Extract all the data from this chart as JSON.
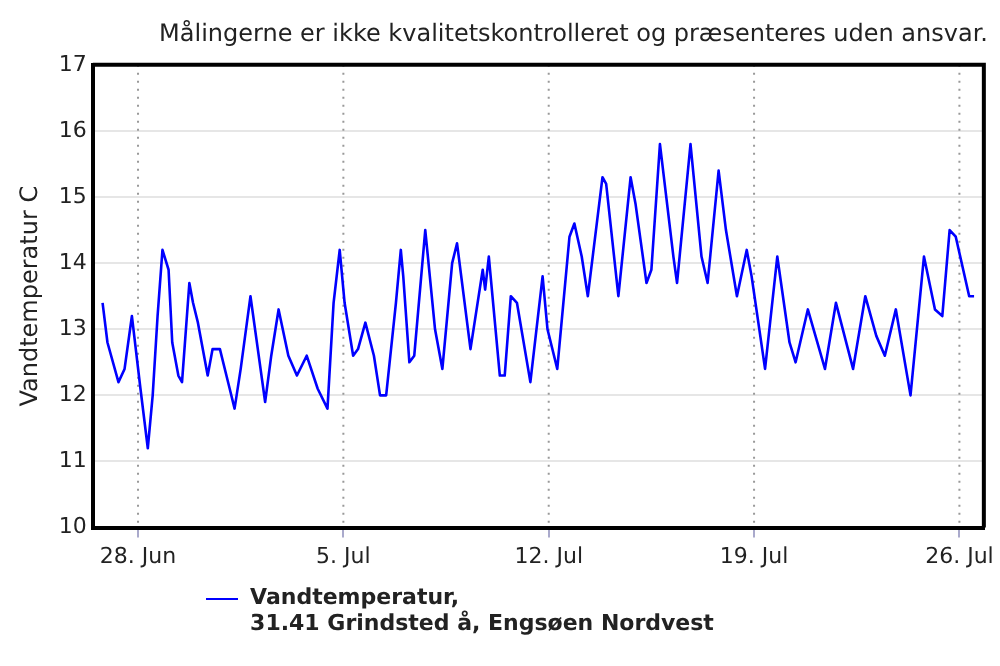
{
  "chart_data": {
    "type": "line",
    "title": "Målingerne er ikke kvalitetskontrolleret og præsenteres uden ansvar.",
    "ylabel": "Vandtemperatur C",
    "ylim": [
      10,
      17
    ],
    "yticks": [
      10,
      11,
      12,
      13,
      14,
      15,
      16,
      17
    ],
    "xlim": [
      "--06-26T11:00",
      "--07-26T20:00"
    ],
    "xticks": [
      {
        "value": "--06-28",
        "label": "28. Jun"
      },
      {
        "value": "--07-05",
        "label": "5. Jul"
      },
      {
        "value": "--07-12",
        "label": "12. Jul"
      },
      {
        "value": "--07-19",
        "label": "19. Jul"
      },
      {
        "value": "--07-26",
        "label": "26. Jul"
      }
    ],
    "grid": true,
    "legend": "bottom",
    "marker": "none",
    "line_style": "solid",
    "x": [
      "--06-26T19:00",
      "--06-26T23:00",
      "--06-27T08:00",
      "--06-27T13:00",
      "--06-27T19:00",
      "--06-28T02:00",
      "--06-28T08:00",
      "--06-28T12:00",
      "--06-28T16:00",
      "--06-28T20:00",
      "--06-29T01:00",
      "--06-29T04:00",
      "--06-29T09:00",
      "--06-29T12:00",
      "--06-29T14:00",
      "--06-29T18:00",
      "--06-29T21:00",
      "--06-30T01:00",
      "--06-30T09:00",
      "--06-30T13:00",
      "--06-30T19:00",
      "--07-01T03:00",
      "--07-01T07:00",
      "--07-01T12:00",
      "--07-01T20:00",
      "--07-02T08:00",
      "--07-02T13:00",
      "--07-02T19:00",
      "--07-03T03:00",
      "--07-03T10:00",
      "--07-03T18:00",
      "--07-04T03:00",
      "--07-04T11:00",
      "--07-04T16:00",
      "--07-04T21:00",
      "--07-05T01:00",
      "--07-05T08:00",
      "--07-05T12:00",
      "--07-05T18:00",
      "--07-06T01:00",
      "--07-06T06:00",
      "--07-06T11:00",
      "--07-06T15:00",
      "--07-06T19:00",
      "--07-06T23:00",
      "--07-07T01:00",
      "--07-07T06:00",
      "--07-07T10:00",
      "--07-07T19:00",
      "--07-08T03:00",
      "--07-08T09:00",
      "--07-08T17:00",
      "--07-08T21:00",
      "--07-09T08:00",
      "--07-09T18:00",
      "--07-09T20:00",
      "--07-09T23:00",
      "--07-10T08:00",
      "--07-10T12:00",
      "--07-10T17:00",
      "--07-10T22:00",
      "--07-11T09:00",
      "--07-11T19:00",
      "--07-11T23:00",
      "--07-12T07:00",
      "--07-12T17:00",
      "--07-12T21:00",
      "--07-13T03:00",
      "--07-13T08:00",
      "--07-13T20:00",
      "--07-13T23:00",
      "--07-14T09:00",
      "--07-14T19:00",
      "--07-14T23:00",
      "--07-15T08:00",
      "--07-15T12:00",
      "--07-15T19:00",
      "--07-16T06:00",
      "--07-16T09:00",
      "--07-16T20:00",
      "--07-17T05:00",
      "--07-17T10:00",
      "--07-17T19:00",
      "--07-18T01:00",
      "--07-18T10:00",
      "--07-18T18:00",
      "--07-18T22:00",
      "--07-19T09:00",
      "--07-19T19:00",
      "--07-20T05:00",
      "--07-20T10:00",
      "--07-20T20:00",
      "--07-21T10:00",
      "--07-21T19:00",
      "--07-22T09:00",
      "--07-22T19:00",
      "--07-23T04:00",
      "--07-23T11:00",
      "--07-23T20:00",
      "--07-24T08:00",
      "--07-24T19:00",
      "--07-25T04:00",
      "--07-25T10:00",
      "--07-25T16:00",
      "--07-25T21:00",
      "--07-26T08:00",
      "--07-26T12:00"
    ],
    "series": [
      {
        "name": "Vandtemperatur,\n31.41 Grindsted å, Engsøen Nordvest",
        "color": "#0000ff",
        "values": [
          13.4,
          12.8,
          12.2,
          12.4,
          13.2,
          12.1,
          11.2,
          12.0,
          13.2,
          14.2,
          13.9,
          12.8,
          12.3,
          12.2,
          12.7,
          13.7,
          13.4,
          13.1,
          12.3,
          12.7,
          12.7,
          12.1,
          11.8,
          12.4,
          13.5,
          11.9,
          12.6,
          13.3,
          12.6,
          12.3,
          12.6,
          12.1,
          11.8,
          13.4,
          14.2,
          13.4,
          12.6,
          12.7,
          13.1,
          12.6,
          12.0,
          12.0,
          12.7,
          13.4,
          14.2,
          13.8,
          12.5,
          12.6,
          14.5,
          13.0,
          12.4,
          14.0,
          14.3,
          12.7,
          13.9,
          13.6,
          14.1,
          12.3,
          12.3,
          13.5,
          13.4,
          12.2,
          13.8,
          13.0,
          12.4,
          14.4,
          14.6,
          14.1,
          13.5,
          15.3,
          15.2,
          13.5,
          15.3,
          14.9,
          13.7,
          13.9,
          15.8,
          14.1,
          13.7,
          15.8,
          14.1,
          13.7,
          15.4,
          14.5,
          13.5,
          14.2,
          13.8,
          12.4,
          14.1,
          12.8,
          12.5,
          13.3,
          12.4,
          13.4,
          12.4,
          13.5,
          12.9,
          12.6,
          13.3,
          12.0,
          14.1,
          13.3,
          13.2,
          14.5,
          14.4,
          13.5,
          13.5
        ]
      }
    ]
  }
}
